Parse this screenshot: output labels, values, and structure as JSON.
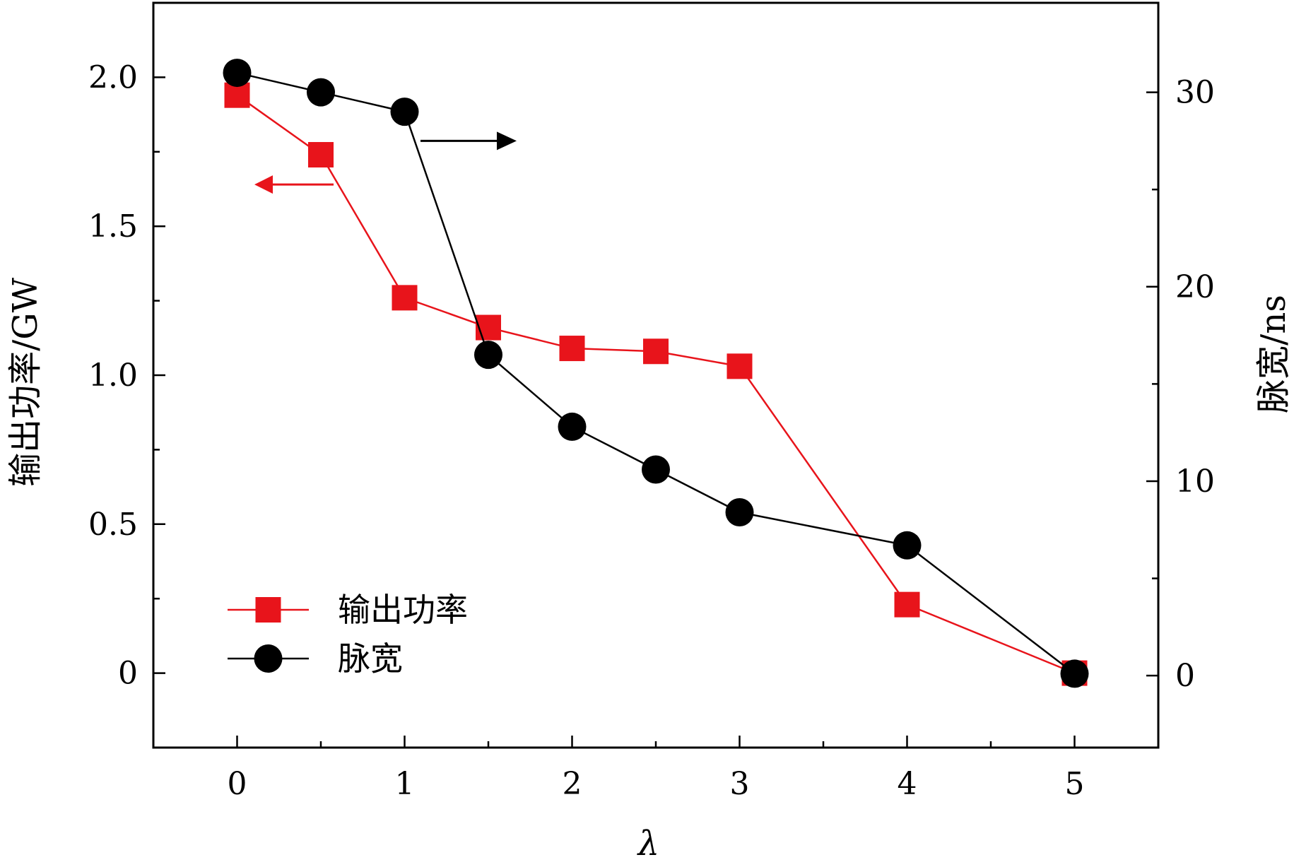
{
  "chart_data": {
    "type": "line",
    "xlabel": "λ",
    "ylabel_left": "输出功率/GW",
    "ylabel_right": "脉宽/ns",
    "xlim": [
      -0.5,
      5.5
    ],
    "ylim_left": [
      -0.25,
      2.25
    ],
    "ylim_right": [
      -3.7,
      34.6
    ],
    "x_ticks": [
      0,
      1,
      2,
      3,
      4,
      5
    ],
    "x_tick_labels": [
      "0",
      "1",
      "2",
      "3",
      "4",
      "5"
    ],
    "y_left_ticks": [
      0,
      0.5,
      1.0,
      1.5,
      2.0
    ],
    "y_left_tick_labels": [
      "0",
      "0.5",
      "1.0",
      "1.5",
      "2.0"
    ],
    "y_right_ticks": [
      0,
      10,
      20,
      30
    ],
    "y_right_tick_labels": [
      "0",
      "10",
      "20",
      "30"
    ],
    "grid": false,
    "legend_position": "bottom-left",
    "series": [
      {
        "name": "输出功率",
        "axis": "left",
        "color": "#e8141b",
        "marker": "square",
        "x": [
          0,
          0.5,
          1,
          1.5,
          2,
          2.5,
          3,
          4,
          5
        ],
        "y": [
          1.94,
          1.74,
          1.26,
          1.16,
          1.09,
          1.08,
          1.03,
          0.23,
          0.0
        ]
      },
      {
        "name": "脉宽",
        "axis": "right",
        "color": "#000000",
        "marker": "circle",
        "x": [
          0,
          0.5,
          1,
          1.5,
          2,
          2.5,
          3,
          4,
          5
        ],
        "y": [
          31.0,
          30.0,
          29.0,
          16.5,
          12.8,
          10.6,
          8.4,
          6.7,
          0.1
        ]
      }
    ],
    "annotations": [
      {
        "type": "arrow",
        "direction": "left",
        "color": "#e8141b",
        "meaning": "left-axis"
      },
      {
        "type": "arrow",
        "direction": "right",
        "color": "#000000",
        "meaning": "right-axis"
      }
    ]
  }
}
